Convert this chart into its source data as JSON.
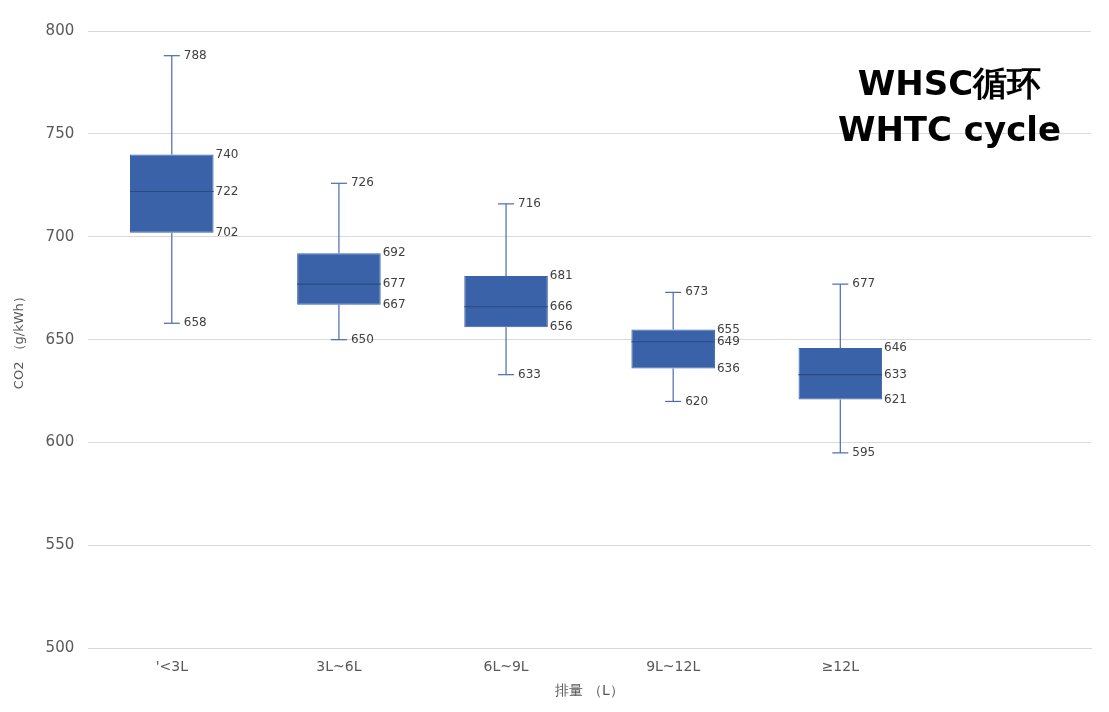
{
  "chart_data": {
    "type": "box",
    "title": "WHSC循环\nWHTC cycle",
    "xlabel": "排量 （L）",
    "ylabel": "CO2 （g/kWh）",
    "categories": [
      "'<3L",
      "3L~6L",
      "6L~9L",
      "9L~12L",
      "≥12L"
    ],
    "boxes": [
      {
        "low": 658,
        "q1": 702,
        "median": 722,
        "q3": 740,
        "high": 788
      },
      {
        "low": 650,
        "q1": 667,
        "median": 677,
        "q3": 692,
        "high": 726
      },
      {
        "low": 633,
        "q1": 656,
        "median": 666,
        "q3": 681,
        "high": 716
      },
      {
        "low": 620,
        "q1": 636,
        "median": 649,
        "q3": 655,
        "high": 673
      },
      {
        "low": 595,
        "q1": 621,
        "median": 633,
        "q3": 646,
        "high": 677
      }
    ],
    "color": "#3a62a8",
    "ylim": [
      500,
      800
    ],
    "yticks": [
      500,
      550,
      600,
      650,
      700,
      750,
      800
    ],
    "grid": "y",
    "annotations": [
      {
        "text": "788",
        "x": "'<3L",
        "y": 788
      },
      {
        "text": "658",
        "x": "'<3L",
        "y": 658
      },
      {
        "text": "726",
        "x": "3L~6L",
        "y": 726
      },
      {
        "text": "650",
        "x": "3L~6L",
        "y": 650
      },
      {
        "text": "716",
        "x": "6L~9L",
        "y": 716
      },
      {
        "text": "633",
        "x": "6L~9L",
        "y": 633
      },
      {
        "text": "673",
        "x": "9L~12L",
        "y": 673
      },
      {
        "text": "620",
        "x": "9L~12L",
        "y": 620
      },
      {
        "text": "677",
        "x": "≥12L",
        "y": 677
      },
      {
        "text": "595",
        "x": "≥12L",
        "y": 595
      },
      "740",
      "722",
      "702",
      "692",
      "677",
      "667",
      "681",
      "666",
      "656",
      "655",
      "649",
      "636",
      "646",
      "633",
      "621"
    ]
  }
}
